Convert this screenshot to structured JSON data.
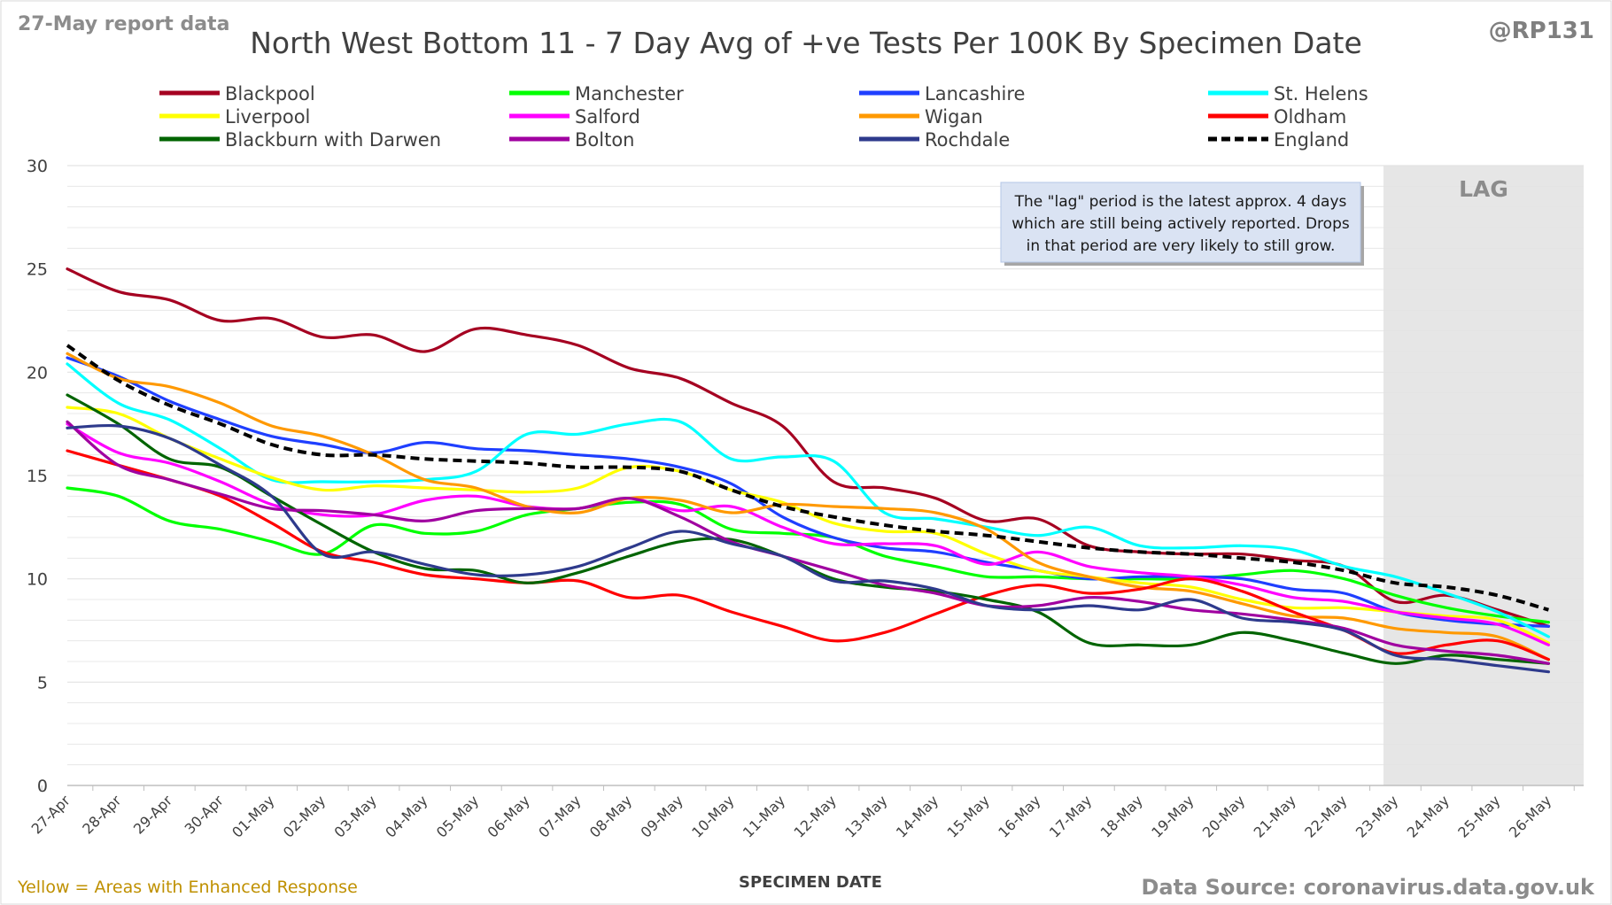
{
  "header": {
    "report_tag": "27-May report data",
    "handle": "@RP131"
  },
  "footer": {
    "enhanced_note": "Yellow = Areas with Enhanced Response",
    "source": "Data Source: coronavirus.data.gov.uk"
  },
  "annotation": {
    "lag_label": "LAG",
    "lines": [
      "The \"lag\" period is the latest approx. 4 days",
      "which are still being actively reported.  Drops",
      "in that period are very likely to still grow."
    ]
  },
  "chart_data": {
    "type": "line",
    "title": "North West Bottom 11 - 7 Day Avg of +ve Tests Per 100K By Specimen Date",
    "xlabel": "SPECIMEN DATE",
    "ylabel": "",
    "ylim": [
      0,
      30
    ],
    "yticks": [
      0,
      5,
      10,
      15,
      20,
      25,
      30
    ],
    "grid": true,
    "legend_position": "top",
    "lag_start_index": 26,
    "categories": [
      "27-Apr",
      "28-Apr",
      "29-Apr",
      "30-Apr",
      "01-May",
      "02-May",
      "03-May",
      "04-May",
      "05-May",
      "06-May",
      "07-May",
      "08-May",
      "09-May",
      "10-May",
      "11-May",
      "12-May",
      "13-May",
      "14-May",
      "15-May",
      "16-May",
      "17-May",
      "18-May",
      "19-May",
      "20-May",
      "21-May",
      "22-May",
      "23-May",
      "24-May",
      "25-May",
      "26-May"
    ],
    "series": [
      {
        "name": "Blackpool",
        "color": "#a50021",
        "dashed": false,
        "values": [
          25.0,
          23.9,
          23.5,
          22.5,
          22.6,
          21.7,
          21.8,
          21.0,
          22.1,
          21.8,
          21.3,
          20.2,
          19.7,
          18.5,
          17.4,
          14.7,
          14.4,
          13.9,
          12.8,
          12.9,
          11.6,
          11.3,
          11.2,
          11.2,
          10.9,
          10.6,
          8.9,
          9.2,
          8.5,
          7.7
        ]
      },
      {
        "name": "Manchester",
        "color": "#00ff00",
        "dashed": false,
        "values": [
          14.4,
          14.0,
          12.8,
          12.4,
          11.8,
          11.2,
          12.6,
          12.2,
          12.3,
          13.1,
          13.4,
          13.7,
          13.6,
          12.4,
          12.2,
          12.0,
          11.1,
          10.6,
          10.1,
          10.1,
          10.0,
          10.0,
          10.0,
          10.2,
          10.4,
          10.0,
          9.2,
          8.6,
          8.2,
          7.9
        ]
      },
      {
        "name": "Lancashire",
        "color": "#1f3fff",
        "dashed": false,
        "values": [
          20.7,
          19.8,
          18.6,
          17.7,
          16.9,
          16.5,
          16.1,
          16.6,
          16.3,
          16.2,
          16.0,
          15.8,
          15.4,
          14.6,
          13.0,
          12.0,
          11.5,
          11.3,
          10.8,
          10.4,
          10.0,
          10.1,
          10.1,
          10.0,
          9.5,
          9.3,
          8.4,
          8.0,
          7.8,
          7.7
        ]
      },
      {
        "name": "St. Helens",
        "color": "#00ffff",
        "dashed": false,
        "values": [
          20.4,
          18.5,
          17.7,
          16.3,
          14.8,
          14.7,
          14.7,
          14.8,
          15.2,
          17.0,
          17.0,
          17.5,
          17.6,
          15.8,
          15.9,
          15.7,
          13.2,
          12.9,
          12.5,
          12.1,
          12.5,
          11.6,
          11.5,
          11.6,
          11.4,
          10.6,
          10.1,
          9.3,
          8.4,
          7.2
        ]
      },
      {
        "name": "Liverpool",
        "color": "#ffff00",
        "dashed": false,
        "values": [
          18.3,
          18.0,
          16.8,
          15.8,
          14.9,
          14.3,
          14.5,
          14.4,
          14.3,
          14.2,
          14.4,
          15.4,
          15.2,
          14.3,
          13.7,
          12.7,
          12.3,
          12.2,
          11.2,
          10.4,
          10.1,
          9.8,
          9.6,
          9.0,
          8.6,
          8.6,
          8.4,
          8.2,
          8.0,
          6.9
        ]
      },
      {
        "name": "Salford",
        "color": "#ff00ff",
        "dashed": false,
        "values": [
          17.5,
          16.1,
          15.6,
          14.7,
          13.6,
          13.1,
          13.1,
          13.8,
          14.0,
          13.5,
          13.4,
          13.9,
          13.3,
          13.5,
          12.5,
          11.7,
          11.7,
          11.6,
          10.7,
          11.3,
          10.6,
          10.3,
          10.1,
          9.7,
          9.1,
          8.9,
          8.4,
          8.1,
          7.8,
          6.8
        ]
      },
      {
        "name": "Wigan",
        "color": "#ff9900",
        "dashed": false,
        "values": [
          20.9,
          19.7,
          19.3,
          18.5,
          17.4,
          16.9,
          16.0,
          14.8,
          14.4,
          13.5,
          13.2,
          13.9,
          13.8,
          13.2,
          13.6,
          13.5,
          13.4,
          13.2,
          12.4,
          10.8,
          10.1,
          9.6,
          9.4,
          8.8,
          8.2,
          8.1,
          7.6,
          7.4,
          7.2,
          6.1
        ]
      },
      {
        "name": "Oldham",
        "color": "#ff0000",
        "dashed": false,
        "values": [
          16.2,
          15.5,
          14.8,
          14.0,
          12.7,
          11.3,
          10.8,
          10.2,
          10.0,
          9.8,
          9.9,
          9.1,
          9.2,
          8.4,
          7.7,
          7.0,
          7.4,
          8.3,
          9.2,
          9.7,
          9.3,
          9.5,
          10.0,
          9.4,
          8.4,
          7.5,
          6.4,
          6.8,
          7.0,
          6.1
        ]
      },
      {
        "name": "Blackburn with Darwen",
        "color": "#006400",
        "dashed": false,
        "values": [
          18.9,
          17.5,
          15.8,
          15.4,
          14.0,
          12.6,
          11.3,
          10.5,
          10.4,
          9.8,
          10.3,
          11.1,
          11.8,
          11.9,
          11.1,
          10.0,
          9.6,
          9.4,
          9.0,
          8.4,
          6.9,
          6.8,
          6.8,
          7.4,
          7.0,
          6.4,
          5.9,
          6.3,
          6.1,
          5.9
        ]
      },
      {
        "name": "Bolton",
        "color": "#a000a0",
        "dashed": false,
        "values": [
          17.6,
          15.5,
          14.8,
          14.1,
          13.4,
          13.3,
          13.1,
          12.8,
          13.3,
          13.4,
          13.4,
          13.9,
          13.0,
          11.8,
          11.1,
          10.4,
          9.7,
          9.3,
          8.7,
          8.7,
          9.1,
          8.9,
          8.5,
          8.3,
          8.0,
          7.6,
          6.8,
          6.5,
          6.3,
          5.9
        ]
      },
      {
        "name": "Rochdale",
        "color": "#2e3a8c",
        "dashed": false,
        "values": [
          17.3,
          17.4,
          16.8,
          15.5,
          14.0,
          11.2,
          11.3,
          10.7,
          10.2,
          10.2,
          10.6,
          11.5,
          12.3,
          11.7,
          11.1,
          9.9,
          9.9,
          9.5,
          8.7,
          8.5,
          8.7,
          8.5,
          9.0,
          8.1,
          7.9,
          7.5,
          6.3,
          6.1,
          5.8,
          5.5
        ]
      },
      {
        "name": "England",
        "color": "#000000",
        "dashed": true,
        "values": [
          21.3,
          19.6,
          18.4,
          17.5,
          16.5,
          16.0,
          16.0,
          15.8,
          15.7,
          15.6,
          15.4,
          15.4,
          15.2,
          14.3,
          13.5,
          13.0,
          12.6,
          12.3,
          12.1,
          11.8,
          11.5,
          11.3,
          11.2,
          11.0,
          10.8,
          10.4,
          9.8,
          9.6,
          9.2,
          8.5
        ]
      }
    ]
  }
}
